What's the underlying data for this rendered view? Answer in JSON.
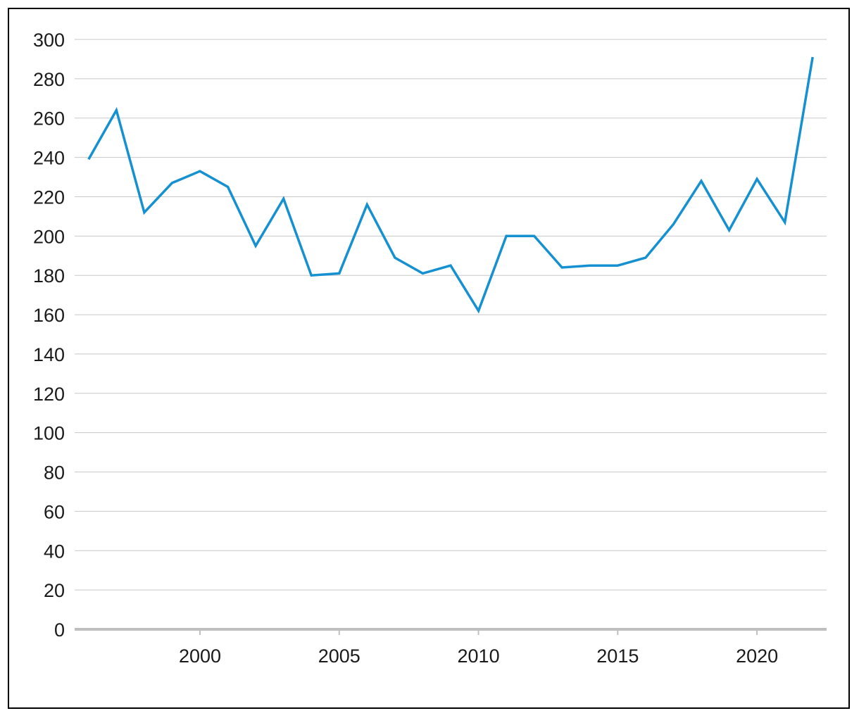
{
  "chart_data": {
    "type": "line",
    "title": "",
    "xlabel": "",
    "ylabel": "",
    "x": [
      1996,
      1997,
      1998,
      1999,
      2000,
      2001,
      2002,
      2003,
      2004,
      2005,
      2006,
      2007,
      2008,
      2009,
      2010,
      2011,
      2012,
      2013,
      2014,
      2015,
      2016,
      2017,
      2018,
      2019,
      2020,
      2021,
      2022
    ],
    "series": [
      {
        "values": [
          239,
          264,
          212,
          227,
          233,
          225,
          195,
          219,
          180,
          181,
          216,
          189,
          181,
          185,
          162,
          200,
          200,
          184,
          185,
          185,
          189,
          206,
          228,
          203,
          229,
          207,
          291
        ],
        "color": "#1590d0"
      }
    ],
    "xlim": [
      1995.5,
      2022.5
    ],
    "ylim": [
      0,
      300
    ],
    "x_ticks": [
      "2000",
      "2005",
      "2010",
      "2015",
      "2020"
    ],
    "y_ticks": [
      "0",
      "20",
      "40",
      "60",
      "80",
      "100",
      "120",
      "140",
      "160",
      "180",
      "200",
      "220",
      "240",
      "260",
      "280",
      "300"
    ],
    "grid": true,
    "legend": "none",
    "colors": {
      "grid": "#c8c8c8",
      "axis": "#bfbfbf",
      "text": "#1a1a1a"
    }
  }
}
